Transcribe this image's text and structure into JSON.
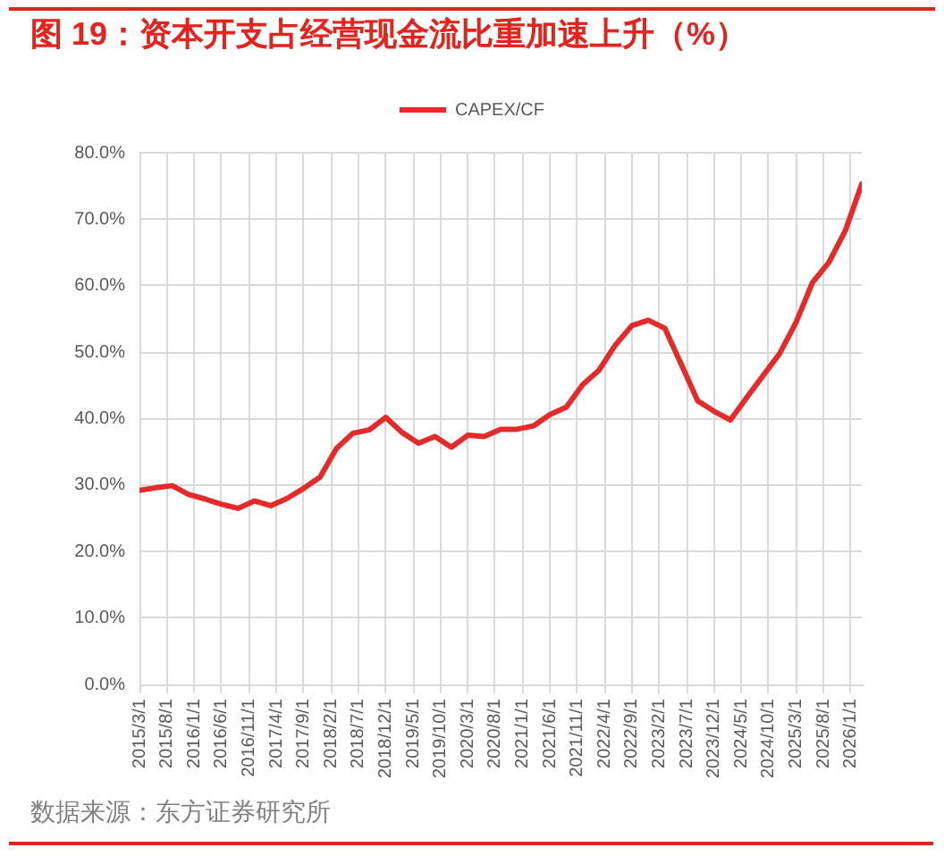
{
  "chart_data": {
    "type": "line",
    "title": "图 19：资本开支占经营现金流比重加速上升（%）",
    "x": [
      "2015-03-01",
      "2015-06-01",
      "2015-09-01",
      "2015-12-01",
      "2016-03-01",
      "2016-06-01",
      "2016-09-01",
      "2016-12-01",
      "2017-03-01",
      "2017-06-01",
      "2017-09-01",
      "2017-12-01",
      "2018-03-01",
      "2018-06-01",
      "2018-09-01",
      "2018-12-01",
      "2019-03-01",
      "2019-06-01",
      "2019-09-01",
      "2019-12-01",
      "2020-03-01",
      "2020-06-01",
      "2020-09-01",
      "2020-12-01",
      "2021-03-01",
      "2021-06-01",
      "2021-09-01",
      "2021-12-01",
      "2022-03-01",
      "2022-06-01",
      "2022-09-01",
      "2022-12-01",
      "2023-03-01",
      "2023-06-01",
      "2023-09-01",
      "2023-12-01",
      "2024-03-01",
      "2024-06-01",
      "2024-09-01",
      "2024-12-01",
      "2025-03-01",
      "2025-06-01",
      "2025-09-01",
      "2025-12-01",
      "2026-03-01"
    ],
    "series": [
      {
        "name": "CAPEX/CF",
        "color": "#e62a2a",
        "values": [
          29.2,
          29.6,
          29.9,
          28.6,
          27.9,
          27.1,
          26.5,
          27.6,
          26.9,
          28.0,
          29.5,
          31.2,
          35.5,
          37.8,
          38.3,
          40.2,
          37.9,
          36.3,
          37.3,
          35.7,
          37.5,
          37.3,
          38.4,
          38.4,
          38.9,
          40.6,
          41.7,
          45.1,
          47.3,
          51.1,
          54.0,
          54.8,
          53.6,
          48.2,
          42.7,
          41.1,
          39.8,
          43.2,
          46.5,
          49.8,
          54.5,
          60.5,
          63.5,
          68.3,
          75.3
        ]
      }
    ],
    "xlim": [
      "2015-03-01",
      "2026-03-01"
    ],
    "xticks": [
      {
        "value": "2015-03-01",
        "label": "2015/3/1"
      },
      {
        "value": "2015-08-01",
        "label": "2015/8/1"
      },
      {
        "value": "2016-01-01",
        "label": "2016/1/1"
      },
      {
        "value": "2016-06-01",
        "label": "2016/6/1"
      },
      {
        "value": "2016-11-01",
        "label": "2016/11/1"
      },
      {
        "value": "2017-04-01",
        "label": "2017/4/1"
      },
      {
        "value": "2017-09-01",
        "label": "2017/9/1"
      },
      {
        "value": "2018-02-01",
        "label": "2018/2/1"
      },
      {
        "value": "2018-07-01",
        "label": "2018/7/1"
      },
      {
        "value": "2018-12-01",
        "label": "2018/12/1"
      },
      {
        "value": "2019-05-01",
        "label": "2019/5/1"
      },
      {
        "value": "2019-10-01",
        "label": "2019/10/1"
      },
      {
        "value": "2020-03-01",
        "label": "2020/3/1"
      },
      {
        "value": "2020-08-01",
        "label": "2020/8/1"
      },
      {
        "value": "2021-01-01",
        "label": "2021/1/1"
      },
      {
        "value": "2021-06-01",
        "label": "2021/6/1"
      },
      {
        "value": "2021-11-01",
        "label": "2021/11/1"
      },
      {
        "value": "2022-04-01",
        "label": "2022/4/1"
      },
      {
        "value": "2022-09-01",
        "label": "2022/9/1"
      },
      {
        "value": "2023-02-01",
        "label": "2023/2/1"
      },
      {
        "value": "2023-07-01",
        "label": "2023/7/1"
      },
      {
        "value": "2023-12-01",
        "label": "2023/12/1"
      },
      {
        "value": "2024-05-01",
        "label": "2024/5/1"
      },
      {
        "value": "2024-10-01",
        "label": "2024/10/1"
      },
      {
        "value": "2025-03-01",
        "label": "2025/3/1"
      },
      {
        "value": "2025-08-01",
        "label": "2025/8/1"
      },
      {
        "value": "2026-01-01",
        "label": "2026/1/1"
      }
    ],
    "ylim": [
      0,
      80
    ],
    "yticks": [
      {
        "value": 0,
        "label": "0.0%"
      },
      {
        "value": 10,
        "label": "10.0%"
      },
      {
        "value": 20,
        "label": "20.0%"
      },
      {
        "value": 30,
        "label": "30.0%"
      },
      {
        "value": 40,
        "label": "40.0%"
      },
      {
        "value": 50,
        "label": "50.0%"
      },
      {
        "value": 60,
        "label": "60.0%"
      },
      {
        "value": 70,
        "label": "70.0%"
      },
      {
        "value": 80,
        "label": "80.0%"
      }
    ],
    "grid": true,
    "legend": "top",
    "annotations": [
      "数据来源：东方证券研究所"
    ]
  }
}
